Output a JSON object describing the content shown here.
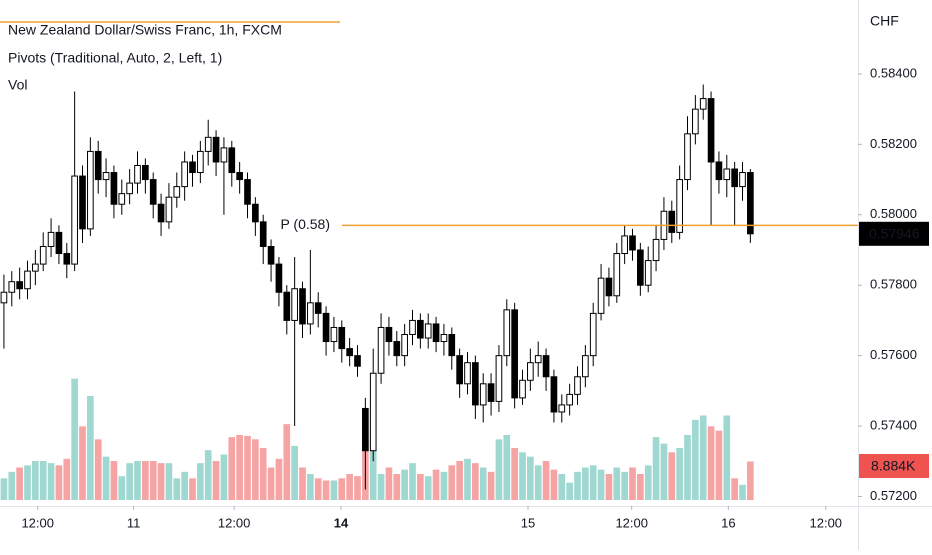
{
  "chart_data": {
    "type": "candlestick",
    "title": "New Zealand Dollar/Swiss Franc, 1h, FXCM",
    "indicators": [
      "Pivots (Traditional, Auto, 2, Left, 1)",
      "Vol"
    ],
    "currency": "CHF",
    "up_color": "#ffffff",
    "down_color": "#000000",
    "wick_color": "#000000",
    "volume_up_color": "#9fd8d0",
    "volume_down_color": "#f5a3a3",
    "pivot": {
      "label": "P (0.58)",
      "value": 0.5797,
      "color": "#f0a030"
    },
    "open": [
      0.5775,
      0.5778,
      0.5781,
      0.5779,
      0.5784,
      0.5786,
      0.5791,
      0.5795,
      0.5789,
      0.5786,
      0.5811,
      0.5796,
      0.5818,
      0.581,
      0.5812,
      0.5803,
      0.5806,
      0.5809,
      0.5814,
      0.581,
      0.5803,
      0.5798,
      0.5805,
      0.5808,
      0.5815,
      0.5812,
      0.5818,
      0.5822,
      0.5815,
      0.5819,
      0.5812,
      0.581,
      0.5803,
      0.5798,
      0.5791,
      0.5786,
      0.5778,
      0.577,
      0.5779,
      0.5769,
      0.5775,
      0.5772,
      0.5764,
      0.5768,
      0.5762,
      0.576,
      0.5745,
      0.5733,
      0.5755,
      0.5768,
      0.5764,
      0.576,
      0.5766,
      0.577,
      0.5765,
      0.5769,
      0.5764,
      0.5766,
      0.576,
      0.5752,
      0.5758,
      0.5746,
      0.5752,
      0.5747,
      0.576,
      0.5773,
      0.5748,
      0.5753,
      0.5758,
      0.576,
      0.5754,
      0.5744,
      0.5746,
      0.5749,
      0.5754,
      0.576,
      0.5772,
      0.5782,
      0.5777,
      0.5789,
      0.5794,
      0.579,
      0.578,
      0.5787,
      0.5793,
      0.5801,
      0.5795,
      0.581,
      0.5823,
      0.583,
      0.5833,
      0.5815,
      0.581,
      0.5813,
      0.5808,
      0.5812
    ],
    "high": [
      0.5783,
      0.5784,
      0.5785,
      0.5787,
      0.579,
      0.5795,
      0.5799,
      0.5797,
      0.5792,
      0.5835,
      0.5814,
      0.5822,
      0.5821,
      0.5816,
      0.5814,
      0.581,
      0.5813,
      0.5818,
      0.5816,
      0.5812,
      0.5806,
      0.5809,
      0.5812,
      0.5818,
      0.5817,
      0.5821,
      0.5827,
      0.5824,
      0.5822,
      0.5821,
      0.5815,
      0.5812,
      0.5805,
      0.58,
      0.5793,
      0.5788,
      0.578,
      0.5788,
      0.5781,
      0.579,
      0.5778,
      0.5774,
      0.5771,
      0.577,
      0.5765,
      0.5763,
      0.5748,
      0.5762,
      0.5772,
      0.5771,
      0.5767,
      0.5769,
      0.5773,
      0.5772,
      0.5772,
      0.5771,
      0.5769,
      0.5768,
      0.5762,
      0.5761,
      0.576,
      0.5755,
      0.5755,
      0.5763,
      0.5776,
      0.5775,
      0.5756,
      0.5762,
      0.5764,
      0.5762,
      0.5756,
      0.5749,
      0.5752,
      0.5757,
      0.5763,
      0.5775,
      0.5786,
      0.5785,
      0.5792,
      0.5797,
      0.5796,
      0.5792,
      0.5791,
      0.5797,
      0.5805,
      0.5804,
      0.5814,
      0.5828,
      0.5834,
      0.5837,
      0.5835,
      0.5818,
      0.5817,
      0.5815,
      0.5815,
      0.5813
    ],
    "low": [
      0.5762,
      0.5774,
      0.5776,
      0.5776,
      0.578,
      0.5784,
      0.5788,
      0.5786,
      0.5782,
      0.5784,
      0.5792,
      0.5794,
      0.5806,
      0.5805,
      0.5799,
      0.58,
      0.5803,
      0.5806,
      0.5806,
      0.5799,
      0.5794,
      0.5796,
      0.5802,
      0.5804,
      0.5808,
      0.5809,
      0.5814,
      0.5811,
      0.58,
      0.5808,
      0.5806,
      0.5799,
      0.5794,
      0.5786,
      0.5781,
      0.5774,
      0.5766,
      0.574,
      0.5765,
      0.5766,
      0.5768,
      0.576,
      0.5761,
      0.5758,
      0.5757,
      0.5754,
      0.5722,
      0.573,
      0.5752,
      0.576,
      0.5757,
      0.5757,
      0.5763,
      0.5762,
      0.5762,
      0.5761,
      0.576,
      0.5756,
      0.5748,
      0.5749,
      0.5742,
      0.5741,
      0.5743,
      0.5744,
      0.5757,
      0.5745,
      0.5746,
      0.575,
      0.5754,
      0.575,
      0.5741,
      0.5741,
      0.5743,
      0.5746,
      0.5751,
      0.5757,
      0.577,
      0.5774,
      0.5775,
      0.5786,
      0.5787,
      0.5777,
      0.5778,
      0.5784,
      0.579,
      0.5792,
      0.5793,
      0.5807,
      0.582,
      0.5827,
      0.5797,
      0.5806,
      0.5805,
      0.5797,
      0.5804,
      0.5792
    ],
    "close": [
      0.5778,
      0.5781,
      0.5779,
      0.5784,
      0.5786,
      0.5791,
      0.5795,
      0.5789,
      0.5786,
      0.5811,
      0.5796,
      0.5818,
      0.581,
      0.5812,
      0.5803,
      0.5806,
      0.5809,
      0.5814,
      0.581,
      0.5803,
      0.5798,
      0.5805,
      0.5808,
      0.5815,
      0.5812,
      0.5818,
      0.5822,
      0.5815,
      0.5819,
      0.5812,
      0.581,
      0.5803,
      0.5798,
      0.5791,
      0.5786,
      0.5778,
      0.577,
      0.5779,
      0.5769,
      0.5775,
      0.5772,
      0.5764,
      0.5768,
      0.5762,
      0.576,
      0.5757,
      0.5733,
      0.5755,
      0.5768,
      0.5764,
      0.576,
      0.5766,
      0.577,
      0.5765,
      0.5769,
      0.5764,
      0.5766,
      0.576,
      0.5752,
      0.5758,
      0.5746,
      0.5752,
      0.5747,
      0.576,
      0.5773,
      0.5748,
      0.5753,
      0.5758,
      0.576,
      0.5754,
      0.5744,
      0.5746,
      0.5749,
      0.5754,
      0.576,
      0.5772,
      0.5782,
      0.5777,
      0.5789,
      0.5794,
      0.579,
      0.578,
      0.5787,
      0.5793,
      0.5801,
      0.5795,
      0.581,
      0.5823,
      0.583,
      0.5833,
      0.5815,
      0.581,
      0.5813,
      0.5808,
      0.5812,
      0.57946
    ],
    "volume": [
      5000,
      6500,
      7500,
      8000,
      9000,
      9000,
      8500,
      8000,
      9500,
      28000,
      17000,
      24000,
      14000,
      10000,
      9000,
      5500,
      8500,
      9000,
      9000,
      9000,
      8500,
      8500,
      5000,
      6500,
      5000,
      8500,
      11500,
      9000,
      10500,
      14500,
      15000,
      14800,
      14000,
      12000,
      7500,
      9500,
      17500,
      12500,
      7500,
      6000,
      5000,
      4500,
      4500,
      5000,
      6000,
      5500,
      14000,
      20000,
      6000,
      7500,
      6000,
      7000,
      8500,
      6000,
      5500,
      7000,
      6500,
      8000,
      9000,
      9500,
      8500,
      7500,
      6500,
      14000,
      15000,
      12000,
      11000,
      10000,
      8000,
      9000,
      7000,
      6000,
      4000,
      6500,
      7500,
      8000,
      7000,
      6000,
      7500,
      6500,
      7500,
      6000,
      8000,
      14500,
      13000,
      11000,
      12000,
      15000,
      18500,
      19500,
      17000,
      16000,
      19500,
      5000,
      3500,
      8884
    ],
    "volume_last_label": "8.884K",
    "ylim": [
      0.5719,
      0.5861
    ],
    "vlim": [
      0,
      30000
    ],
    "xlim": [
      -0.5,
      108.7
    ],
    "yticks": [
      {
        "value": 0.584,
        "label": "0.58400"
      },
      {
        "value": 0.582,
        "label": "0.58200"
      },
      {
        "value": 0.58,
        "label": "0.58000"
      },
      {
        "value": 0.578,
        "label": "0.57800"
      },
      {
        "value": 0.576,
        "label": "0.57600"
      },
      {
        "value": 0.574,
        "label": "0.57400"
      },
      {
        "value": 0.572,
        "label": "0.57200"
      }
    ],
    "xticks": [
      {
        "value": 4.3,
        "label": "12:00"
      },
      {
        "value": 16.5,
        "label": "11"
      },
      {
        "value": 29.3,
        "label": "12:00"
      },
      {
        "value": 42.9,
        "label": "14",
        "bold": true
      },
      {
        "value": 66.7,
        "label": "15"
      },
      {
        "value": 79.9,
        "label": "12:00"
      },
      {
        "value": 92.2,
        "label": "16"
      },
      {
        "value": 104.6,
        "label": "12:00"
      }
    ]
  }
}
